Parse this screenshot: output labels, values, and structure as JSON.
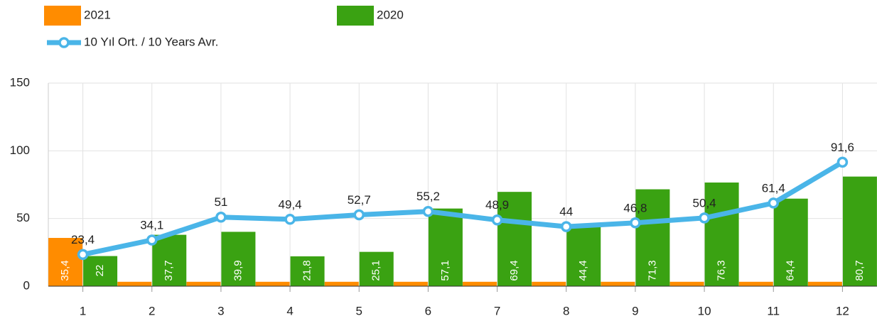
{
  "chart_data": {
    "type": "bar",
    "categories": [
      "1",
      "2",
      "3",
      "4",
      "5",
      "6",
      "7",
      "8",
      "9",
      "10",
      "11",
      "12"
    ],
    "series": [
      {
        "name": "2021",
        "color": "#ff8c00",
        "type": "bar",
        "values": [
          35.4,
          3,
          3,
          3,
          3,
          3,
          3,
          3,
          3,
          3,
          3,
          3
        ],
        "value_labels": [
          "35,4",
          null,
          null,
          null,
          null,
          null,
          null,
          null,
          null,
          null,
          null,
          null
        ]
      },
      {
        "name": "2020",
        "color": "#3aa212",
        "type": "bar",
        "values": [
          22,
          37.7,
          39.9,
          21.8,
          25.1,
          57.1,
          69.4,
          44.4,
          71.3,
          76.3,
          64.4,
          80.7
        ],
        "value_labels": [
          "22",
          "37,7",
          "39,9",
          "21,8",
          "25,1",
          "57,1",
          "69,4",
          "44,4",
          "71,3",
          "76,3",
          "64,4",
          "80,7"
        ]
      },
      {
        "name": "10 Yıl Ort. / 10 Years Avr.",
        "color": "#4ab5e8",
        "type": "line",
        "values": [
          23.4,
          34.1,
          51,
          49.4,
          52.7,
          55.2,
          48.9,
          44,
          46.8,
          50.4,
          61.4,
          91.6
        ],
        "value_labels": [
          "23,4",
          "34,1",
          "51",
          "49,4",
          "52,7",
          "55,2",
          "48,9",
          "44",
          "46,8",
          "50,4",
          "61,4",
          "91,6"
        ]
      }
    ],
    "ylim": [
      0,
      150
    ],
    "yticks": [
      0,
      50,
      100,
      150
    ],
    "grid": true
  }
}
